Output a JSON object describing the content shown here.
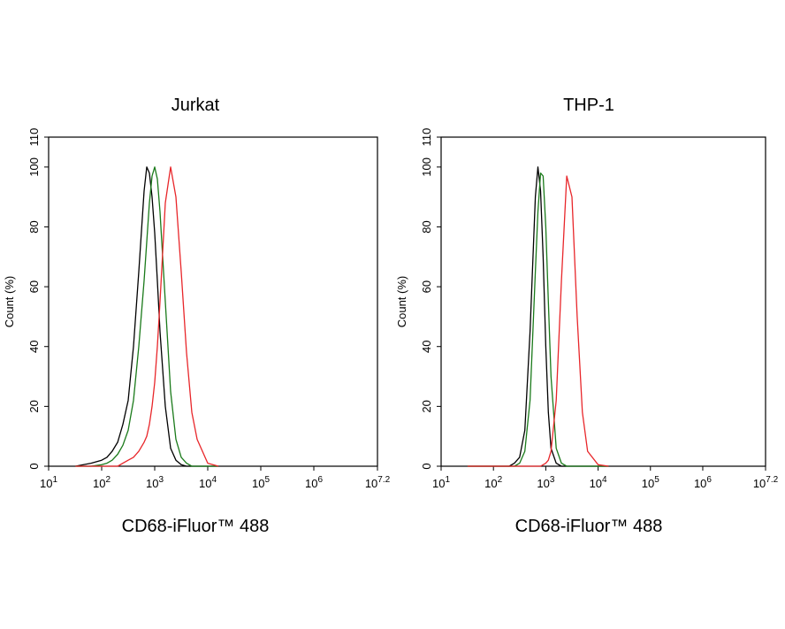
{
  "chart_data": [
    {
      "type": "line",
      "title": "Jurkat",
      "x_label": "CD68-iFluor™ 488",
      "y_label": "Count (%)",
      "x_scale": "log",
      "xlim": [
        10,
        15848931.92
      ],
      "ylim": [
        0,
        110
      ],
      "xticks": [
        {
          "value": 10,
          "label": "10",
          "exponent": "1"
        },
        {
          "value": 100,
          "label": "10",
          "exponent": "2"
        },
        {
          "value": 1000,
          "label": "10",
          "exponent": "3"
        },
        {
          "value": 10000,
          "label": "10",
          "exponent": "4"
        },
        {
          "value": 100000,
          "label": "10",
          "exponent": "5"
        },
        {
          "value": 1000000,
          "label": "10",
          "exponent": "6"
        },
        {
          "value": 15848931.92,
          "label": "10",
          "exponent": "7.2"
        }
      ],
      "yticks": [
        0,
        20,
        40,
        60,
        80,
        100,
        110
      ],
      "x": [
        32,
        63,
        100,
        126,
        158,
        200,
        251,
        316,
        398,
        501,
        631,
        708,
        794,
        891,
        1000,
        1122,
        1259,
        1585,
        1995,
        2512,
        3162,
        3981,
        5012,
        6310,
        10000,
        15849
      ],
      "series": [
        {
          "color": "#000000",
          "values": [
            0,
            1,
            2,
            3,
            5,
            8,
            14,
            22,
            40,
            65,
            92,
            100,
            98,
            90,
            78,
            62,
            45,
            20,
            6,
            2,
            0.5,
            0,
            0,
            0,
            0,
            0
          ]
        },
        {
          "color": "#1a7a1a",
          "values": [
            0,
            0,
            0.5,
            1,
            2,
            4,
            7,
            12,
            22,
            40,
            62,
            75,
            88,
            97,
            100,
            96,
            85,
            55,
            25,
            9,
            3,
            1,
            0,
            0,
            0,
            0
          ]
        },
        {
          "color": "#e8262a",
          "values": [
            0,
            0,
            0,
            0,
            0,
            0,
            1,
            2,
            3,
            5,
            8,
            10,
            14,
            20,
            28,
            40,
            55,
            88,
            100,
            90,
            65,
            38,
            18,
            9,
            1,
            0
          ]
        }
      ]
    },
    {
      "type": "line",
      "title": "THP-1",
      "x_label": "CD68-iFluor™ 488",
      "y_label": "Count (%)",
      "x_scale": "log",
      "xlim": [
        10,
        15848931.92
      ],
      "ylim": [
        0,
        110
      ],
      "xticks": [
        {
          "value": 10,
          "label": "10",
          "exponent": "1"
        },
        {
          "value": 100,
          "label": "10",
          "exponent": "2"
        },
        {
          "value": 1000,
          "label": "10",
          "exponent": "3"
        },
        {
          "value": 10000,
          "label": "10",
          "exponent": "4"
        },
        {
          "value": 100000,
          "label": "10",
          "exponent": "5"
        },
        {
          "value": 1000000,
          "label": "10",
          "exponent": "6"
        },
        {
          "value": 15848931.92,
          "label": "10",
          "exponent": "7.2"
        }
      ],
      "yticks": [
        0,
        20,
        40,
        60,
        80,
        100,
        110
      ],
      "x": [
        32,
        63,
        100,
        126,
        158,
        200,
        251,
        316,
        398,
        501,
        631,
        708,
        794,
        891,
        1000,
        1122,
        1259,
        1585,
        1995,
        2512,
        3162,
        3981,
        5012,
        6310,
        10000,
        15849
      ],
      "series": [
        {
          "color": "#000000",
          "values": [
            0,
            0,
            0,
            0,
            0,
            0,
            1,
            3,
            12,
            45,
            90,
            100,
            92,
            70,
            40,
            18,
            6,
            1,
            0,
            0,
            0,
            0,
            0,
            0,
            0,
            0
          ]
        },
        {
          "color": "#1a7a1a",
          "values": [
            0,
            0,
            0,
            0,
            0,
            0,
            0,
            1,
            5,
            22,
            65,
            85,
            98,
            97,
            80,
            55,
            30,
            6,
            1,
            0,
            0,
            0,
            0,
            0,
            0,
            0
          ]
        },
        {
          "color": "#e8262a",
          "values": [
            0,
            0,
            0,
            0,
            0,
            0,
            0,
            0,
            0,
            0,
            0,
            0,
            0,
            0.5,
            1,
            2,
            5,
            22,
            62,
            97,
            90,
            50,
            18,
            5,
            0.5,
            0
          ]
        }
      ]
    }
  ]
}
